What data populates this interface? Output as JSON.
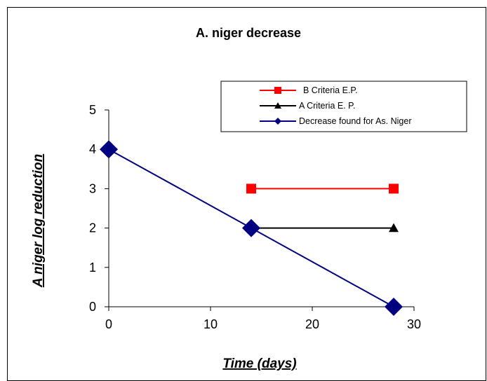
{
  "chart_data": {
    "type": "line",
    "title": "A. niger decrease",
    "xlabel": "Time (days)",
    "ylabel": "A niger log reduction",
    "xlim": [
      0,
      30
    ],
    "ylim": [
      0,
      5
    ],
    "xticks": [
      "0",
      "10",
      "20",
      "30"
    ],
    "yticks": [
      "0",
      "1",
      "2",
      "3",
      "4",
      "5"
    ],
    "grid": false,
    "legend_position": "top-right",
    "series": [
      {
        "name": "B Criteria E.P.",
        "color": "#ff0000",
        "marker": "square",
        "x": [
          14,
          28
        ],
        "y": [
          3,
          3
        ]
      },
      {
        "name": "A Criteria E. P.",
        "color": "#000000",
        "marker": "triangle",
        "x": [
          14,
          28
        ],
        "y": [
          2,
          2
        ]
      },
      {
        "name": "Decrease found for As. Niger",
        "color": "#000080",
        "marker": "diamond",
        "x": [
          0,
          14,
          28
        ],
        "y": [
          4,
          2,
          0
        ]
      }
    ]
  }
}
